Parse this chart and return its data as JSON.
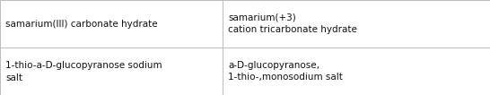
{
  "rows": [
    {
      "col1": "samarium(III) carbonate hydrate",
      "col2": "samarium(+3)\ncation tricarbonate hydrate"
    },
    {
      "col1": "1-thio-a-D-glucopyranose sodium\nsalt",
      "col2": "a-D-glucopyranose,\n1-thio-,monosodium salt"
    }
  ],
  "col_split": 0.455,
  "background_color": "#ffffff",
  "border_color": "#bbbbbb",
  "font_size": 7.5,
  "font_color": "#111111",
  "fig_width": 5.46,
  "fig_height": 1.06,
  "dpi": 100
}
